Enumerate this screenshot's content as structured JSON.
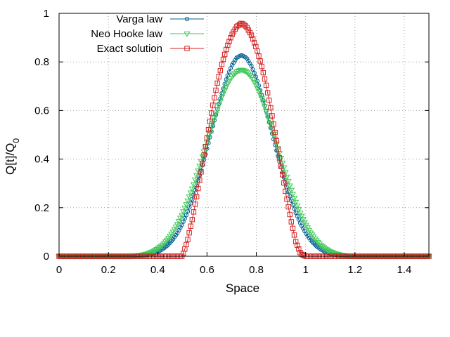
{
  "chart_data": {
    "type": "line",
    "xlabel": "Space",
    "ylabel": "Q[t]/Q",
    "ylabel_sub": "0",
    "xlim": [
      0,
      1.5
    ],
    "ylim": [
      0,
      1
    ],
    "x_ticks": [
      "0",
      "0.2",
      "0.4",
      "0.6",
      "0.8",
      "1",
      "1.2",
      "1.4"
    ],
    "x_tick_values": [
      0,
      0.2,
      0.4,
      0.6,
      0.8,
      1.0,
      1.2,
      1.4
    ],
    "y_ticks": [
      "0",
      "0.2",
      "0.4",
      "0.6",
      "0.8",
      "1"
    ],
    "y_tick_values": [
      0,
      0.2,
      0.4,
      0.6,
      0.8,
      1.0
    ],
    "grid": true,
    "legend_position": "top-left",
    "series": [
      {
        "name": "Varga law",
        "color": "#005f8f",
        "marker": "circle",
        "x": [
          0.0,
          0.3,
          0.32,
          0.34,
          0.36,
          0.38,
          0.4,
          0.42,
          0.44,
          0.46,
          0.48,
          0.5,
          0.52,
          0.54,
          0.56,
          0.58,
          0.6,
          0.62,
          0.64,
          0.66,
          0.68,
          0.7,
          0.72,
          0.74,
          0.76,
          0.78,
          0.8,
          0.82,
          0.84,
          0.86,
          0.88,
          0.9,
          0.92,
          0.94,
          0.96,
          0.98,
          1.0,
          1.02,
          1.04,
          1.06,
          1.08,
          1.1,
          1.12,
          1.14,
          1.16,
          1.18,
          1.2,
          1.5
        ],
        "y": [
          0.0,
          0.0,
          0.001,
          0.003,
          0.006,
          0.011,
          0.018,
          0.029,
          0.045,
          0.067,
          0.096,
          0.133,
          0.179,
          0.234,
          0.297,
          0.367,
          0.443,
          0.521,
          0.598,
          0.671,
          0.734,
          0.784,
          0.817,
          0.828,
          0.817,
          0.784,
          0.734,
          0.671,
          0.598,
          0.521,
          0.443,
          0.367,
          0.297,
          0.234,
          0.179,
          0.133,
          0.096,
          0.067,
          0.045,
          0.029,
          0.018,
          0.011,
          0.006,
          0.003,
          0.001,
          0.0,
          0.0,
          0.0
        ]
      },
      {
        "name": "Neo Hooke law",
        "color": "#41c85a",
        "marker": "triangle-down",
        "x": [
          0.0,
          0.28,
          0.3,
          0.32,
          0.34,
          0.36,
          0.38,
          0.4,
          0.42,
          0.44,
          0.46,
          0.48,
          0.5,
          0.52,
          0.54,
          0.56,
          0.58,
          0.6,
          0.62,
          0.64,
          0.66,
          0.68,
          0.7,
          0.72,
          0.74,
          0.76,
          0.78,
          0.8,
          0.82,
          0.84,
          0.86,
          0.88,
          0.9,
          0.92,
          0.94,
          0.96,
          0.98,
          1.0,
          1.02,
          1.04,
          1.06,
          1.08,
          1.1,
          1.12,
          1.14,
          1.16,
          1.18,
          1.2,
          1.22,
          1.24,
          1.26,
          1.5
        ],
        "y": [
          0.0,
          0.0,
          0.001,
          0.003,
          0.006,
          0.011,
          0.019,
          0.031,
          0.047,
          0.069,
          0.097,
          0.132,
          0.174,
          0.223,
          0.278,
          0.339,
          0.404,
          0.47,
          0.536,
          0.599,
          0.655,
          0.702,
          0.738,
          0.76,
          0.768,
          0.76,
          0.738,
          0.702,
          0.655,
          0.599,
          0.536,
          0.47,
          0.404,
          0.339,
          0.278,
          0.223,
          0.174,
          0.132,
          0.097,
          0.069,
          0.047,
          0.031,
          0.019,
          0.011,
          0.006,
          0.003,
          0.001,
          0.0,
          0.0,
          0.0,
          0.0,
          0.0
        ]
      },
      {
        "name": "Exact solution",
        "color": "#d42020",
        "marker": "square",
        "x": [
          0.0,
          0.5,
          0.52,
          0.54,
          0.56,
          0.58,
          0.6,
          0.62,
          0.64,
          0.66,
          0.68,
          0.7,
          0.72,
          0.74,
          0.76,
          0.78,
          0.8,
          0.82,
          0.84,
          0.86,
          0.88,
          0.9,
          0.92,
          0.94,
          0.96,
          0.98,
          1.0,
          1.5
        ],
        "y": [
          0.0,
          0.0,
          0.06,
          0.151,
          0.256,
          0.37,
          0.487,
          0.601,
          0.704,
          0.79,
          0.858,
          0.91,
          0.945,
          0.96,
          0.945,
          0.91,
          0.858,
          0.79,
          0.704,
          0.601,
          0.487,
          0.37,
          0.256,
          0.151,
          0.06,
          0.01,
          0.0,
          0.0
        ]
      }
    ]
  }
}
